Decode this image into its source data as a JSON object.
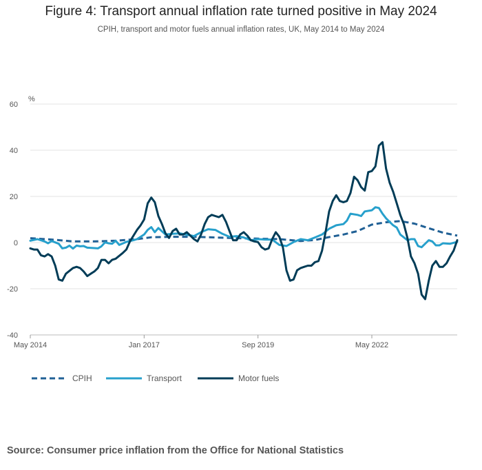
{
  "chart_data": {
    "type": "line",
    "title": "Figure 4: Transport annual inflation rate turned positive in May 2024",
    "subtitle": "CPIH, transport and motor fuels annual inflation rates, UK, May 2014 to May 2024",
    "ylabel": "%",
    "xlabel": "",
    "ylim": [
      -40,
      60
    ],
    "yticks": [
      60,
      40,
      20,
      0,
      -20,
      -40
    ],
    "x_start": "May 2014",
    "x_end": "May 2024",
    "xticks": [
      {
        "label": "May 2014",
        "index": 0
      },
      {
        "label": "Jan 2017",
        "index": 32
      },
      {
        "label": "Sep 2019",
        "index": 64
      },
      {
        "label": "May 2022",
        "index": 96
      }
    ],
    "grid": true,
    "legend_position": "bottom-left",
    "series": [
      {
        "name": "CPIH",
        "style": "dashed",
        "color": "#206095",
        "anchors": [
          [
            0,
            1.9
          ],
          [
            6,
            1.3
          ],
          [
            12,
            0.5
          ],
          [
            18,
            0.5
          ],
          [
            24,
            0.8
          ],
          [
            30,
            1.5
          ],
          [
            34,
            2.3
          ],
          [
            40,
            2.5
          ],
          [
            46,
            2.5
          ],
          [
            52,
            2.2
          ],
          [
            58,
            1.9
          ],
          [
            64,
            1.7
          ],
          [
            70,
            1.5
          ],
          [
            76,
            0.7
          ],
          [
            80,
            1.1
          ],
          [
            84,
            2.4
          ],
          [
            88,
            3.5
          ],
          [
            92,
            5.0
          ],
          [
            96,
            7.8
          ],
          [
            100,
            8.8
          ],
          [
            104,
            9.3
          ],
          [
            108,
            8.2
          ],
          [
            112,
            6.2
          ],
          [
            116,
            4.3
          ],
          [
            120,
            3.0
          ]
        ]
      },
      {
        "name": "Transport",
        "style": "solid",
        "color": "#27a0cc",
        "anchors": [
          [
            0,
            0.8
          ],
          [
            2,
            1.5
          ],
          [
            4,
            0.5
          ],
          [
            5,
            -0.3
          ],
          [
            6,
            0.7
          ],
          [
            8,
            -0.5
          ],
          [
            9,
            -2.5
          ],
          [
            10,
            -2.2
          ],
          [
            11,
            -1.3
          ],
          [
            12,
            -2.6
          ],
          [
            13,
            -1.3
          ],
          [
            14,
            -1.6
          ],
          [
            15,
            -1.5
          ],
          [
            16,
            -2.2
          ],
          [
            18,
            -2.4
          ],
          [
            19,
            -2.5
          ],
          [
            20,
            -1.6
          ],
          [
            21,
            0.1
          ],
          [
            22,
            -0.3
          ],
          [
            23,
            -0.5
          ],
          [
            24,
            0.8
          ],
          [
            25,
            -1.0
          ],
          [
            26,
            -0.4
          ],
          [
            27,
            0.3
          ],
          [
            29,
            1.0
          ],
          [
            30,
            1.5
          ],
          [
            31,
            2.5
          ],
          [
            32,
            3.5
          ],
          [
            33,
            5.5
          ],
          [
            34,
            6.7
          ],
          [
            35,
            4.5
          ],
          [
            36,
            6.3
          ],
          [
            38,
            3.5
          ],
          [
            40,
            3.8
          ],
          [
            42,
            4.0
          ],
          [
            44,
            3.4
          ],
          [
            46,
            2.8
          ],
          [
            48,
            4.5
          ],
          [
            50,
            5.8
          ],
          [
            52,
            5.5
          ],
          [
            54,
            3.8
          ],
          [
            56,
            2.5
          ],
          [
            58,
            2.8
          ],
          [
            60,
            2.2
          ],
          [
            62,
            1.0
          ],
          [
            64,
            1.5
          ],
          [
            66,
            1.3
          ],
          [
            68,
            1.3
          ],
          [
            70,
            -1.0
          ],
          [
            72,
            -1.5
          ],
          [
            74,
            0.2
          ],
          [
            76,
            1.5
          ],
          [
            78,
            1.0
          ],
          [
            80,
            2.2
          ],
          [
            82,
            3.5
          ],
          [
            84,
            6.0
          ],
          [
            86,
            7.5
          ],
          [
            88,
            8.0
          ],
          [
            89,
            9.5
          ],
          [
            90,
            12.5
          ],
          [
            92,
            12.0
          ],
          [
            93,
            11.5
          ],
          [
            94,
            13.5
          ],
          [
            96,
            14.0
          ],
          [
            97,
            15.3
          ],
          [
            98,
            15.0
          ],
          [
            99,
            12.5
          ],
          [
            100,
            10.5
          ],
          [
            101,
            9.0
          ],
          [
            102,
            7.5
          ],
          [
            103,
            6.5
          ],
          [
            104,
            3.5
          ],
          [
            106,
            1.0
          ],
          [
            107,
            1.5
          ],
          [
            108,
            1.5
          ],
          [
            109,
            -1.5
          ],
          [
            110,
            -2.0
          ],
          [
            112,
            1.0
          ],
          [
            113,
            0.5
          ],
          [
            114,
            -1.2
          ],
          [
            115,
            -1.2
          ],
          [
            116,
            -0.3
          ],
          [
            118,
            -0.5
          ],
          [
            120,
            0.3
          ]
        ]
      },
      {
        "name": "Motor fuels",
        "style": "solid",
        "color": "#003c57",
        "anchors": [
          [
            0,
            -2.5
          ],
          [
            1,
            -3.0
          ],
          [
            2,
            -3.0
          ],
          [
            3,
            -5.5
          ],
          [
            4,
            -6.0
          ],
          [
            5,
            -5.0
          ],
          [
            6,
            -6.0
          ],
          [
            7,
            -10.0
          ],
          [
            8,
            -16.0
          ],
          [
            9,
            -16.5
          ],
          [
            10,
            -13.5
          ],
          [
            12,
            -11.0
          ],
          [
            13,
            -10.5
          ],
          [
            14,
            -11.0
          ],
          [
            15,
            -12.5
          ],
          [
            16,
            -14.5
          ],
          [
            17,
            -13.5
          ],
          [
            18,
            -12.5
          ],
          [
            19,
            -11.0
          ],
          [
            20,
            -7.5
          ],
          [
            21,
            -7.5
          ],
          [
            22,
            -9.0
          ],
          [
            23,
            -7.5
          ],
          [
            24,
            -7.0
          ],
          [
            26,
            -4.5
          ],
          [
            27,
            -3.0
          ],
          [
            28,
            0.5
          ],
          [
            30,
            5.5
          ],
          [
            31,
            7.5
          ],
          [
            32,
            10.0
          ],
          [
            33,
            17.0
          ],
          [
            34,
            19.5
          ],
          [
            35,
            17.5
          ],
          [
            36,
            11.5
          ],
          [
            37,
            8.0
          ],
          [
            38,
            4.0
          ],
          [
            39,
            2.0
          ],
          [
            40,
            5.0
          ],
          [
            41,
            6.0
          ],
          [
            42,
            3.5
          ],
          [
            43,
            3.5
          ],
          [
            44,
            4.5
          ],
          [
            45,
            3.0
          ],
          [
            46,
            1.5
          ],
          [
            47,
            0.5
          ],
          [
            48,
            3.5
          ],
          [
            49,
            8.0
          ],
          [
            50,
            11.0
          ],
          [
            51,
            12.0
          ],
          [
            52,
            11.5
          ],
          [
            53,
            11.0
          ],
          [
            54,
            12.0
          ],
          [
            55,
            9.0
          ],
          [
            56,
            5.0
          ],
          [
            57,
            1.0
          ],
          [
            58,
            1.0
          ],
          [
            59,
            3.5
          ],
          [
            60,
            4.5
          ],
          [
            61,
            3.0
          ],
          [
            62,
            1.0
          ],
          [
            63,
            0.5
          ],
          [
            64,
            0.2
          ],
          [
            65,
            -2.0
          ],
          [
            66,
            -3.0
          ],
          [
            67,
            -2.5
          ],
          [
            68,
            1.5
          ],
          [
            69,
            4.5
          ],
          [
            70,
            2.5
          ],
          [
            71,
            -2.0
          ],
          [
            72,
            -12.0
          ],
          [
            73,
            -16.5
          ],
          [
            74,
            -16.0
          ],
          [
            75,
            -12.0
          ],
          [
            76,
            -11.0
          ],
          [
            77,
            -10.5
          ],
          [
            78,
            -10.0
          ],
          [
            79,
            -10.0
          ],
          [
            80,
            -8.5
          ],
          [
            81,
            -8.0
          ],
          [
            82,
            -3.5
          ],
          [
            83,
            4.5
          ],
          [
            84,
            13.5
          ],
          [
            85,
            18.0
          ],
          [
            86,
            20.5
          ],
          [
            87,
            18.0
          ],
          [
            88,
            17.5
          ],
          [
            89,
            18.0
          ],
          [
            90,
            21.5
          ],
          [
            91,
            28.5
          ],
          [
            92,
            27.0
          ],
          [
            93,
            24.0
          ],
          [
            94,
            22.5
          ],
          [
            95,
            30.5
          ],
          [
            96,
            31.0
          ],
          [
            97,
            33.0
          ],
          [
            98,
            42.0
          ],
          [
            99,
            43.5
          ],
          [
            100,
            32.0
          ],
          [
            101,
            26.0
          ],
          [
            102,
            22.0
          ],
          [
            103,
            17.0
          ],
          [
            104,
            12.0
          ],
          [
            105,
            8.0
          ],
          [
            106,
            2.0
          ],
          [
            107,
            -6.0
          ],
          [
            108,
            -9.0
          ],
          [
            109,
            -13.5
          ],
          [
            110,
            -22.5
          ],
          [
            111,
            -24.5
          ],
          [
            112,
            -16.5
          ],
          [
            113,
            -10.0
          ],
          [
            114,
            -8.0
          ],
          [
            115,
            -10.5
          ],
          [
            116,
            -10.5
          ],
          [
            117,
            -9.0
          ],
          [
            118,
            -6.0
          ],
          [
            119,
            -3.5
          ],
          [
            120,
            1.0
          ]
        ]
      }
    ]
  },
  "legend": {
    "items": [
      {
        "label": "CPIH"
      },
      {
        "label": "Transport"
      },
      {
        "label": "Motor fuels"
      }
    ]
  },
  "footer": {
    "source": "Source: Consumer price inflation from the Office for National Statistics"
  }
}
